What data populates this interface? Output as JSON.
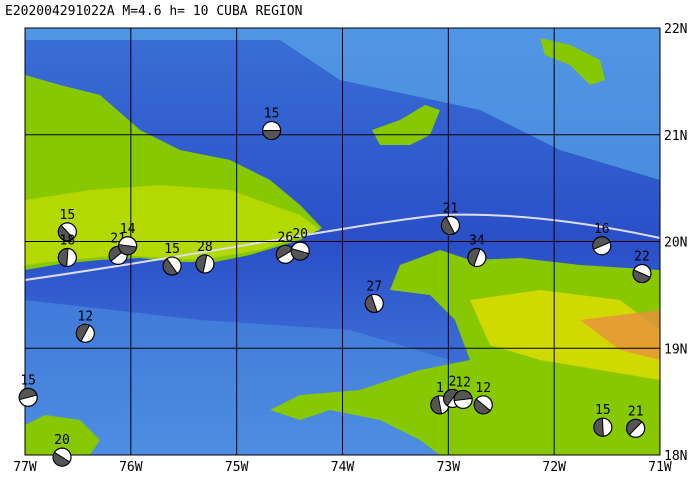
{
  "title": "E202004291022A  M=4.6  h= 10  CUBA REGION",
  "lonlim": [
    -77,
    -71
  ],
  "latlim": [
    18,
    22
  ],
  "lonticks": [
    {
      "value": -77,
      "label": "77W"
    },
    {
      "value": -76,
      "label": "76W"
    },
    {
      "value": -75,
      "label": "75W"
    },
    {
      "value": -74,
      "label": "74W"
    },
    {
      "value": -73,
      "label": "73W"
    },
    {
      "value": -72,
      "label": "72W"
    },
    {
      "value": -71,
      "label": "71W"
    }
  ],
  "latticks": [
    {
      "value": 22,
      "label": "22N"
    },
    {
      "value": 21,
      "label": "21N"
    },
    {
      "value": 20,
      "label": "20N"
    },
    {
      "value": 19,
      "label": "19N"
    },
    {
      "value": 18,
      "label": "18N"
    }
  ],
  "events": [
    {
      "lon": -74.67,
      "lat": 21.04,
      "depth": 15
    },
    {
      "lon": -76.6,
      "lat": 20.09,
      "depth": 15
    },
    {
      "lon": -76.6,
      "lat": 19.85,
      "depth": 18
    },
    {
      "lon": -76.12,
      "lat": 19.87,
      "depth": 21
    },
    {
      "lon": -76.03,
      "lat": 19.96,
      "depth": 14
    },
    {
      "lon": -75.61,
      "lat": 19.77,
      "depth": 15
    },
    {
      "lon": -75.3,
      "lat": 19.79,
      "depth": 28
    },
    {
      "lon": -74.54,
      "lat": 19.88,
      "depth": 26
    },
    {
      "lon": -74.4,
      "lat": 19.91,
      "depth": 20
    },
    {
      "lon": -72.98,
      "lat": 20.15,
      "depth": 21
    },
    {
      "lon": -72.73,
      "lat": 19.85,
      "depth": 34
    },
    {
      "lon": -71.55,
      "lat": 19.96,
      "depth": 16
    },
    {
      "lon": -71.17,
      "lat": 19.7,
      "depth": 22
    },
    {
      "lon": -73.7,
      "lat": 19.42,
      "depth": 27
    },
    {
      "lon": -76.43,
      "lat": 19.14,
      "depth": 12
    },
    {
      "lon": -76.97,
      "lat": 18.54,
      "depth": 15
    },
    {
      "lon": -76.65,
      "lat": 17.98,
      "depth": 20
    },
    {
      "lon": -73.08,
      "lat": 18.47,
      "depth": 1
    },
    {
      "lon": -72.96,
      "lat": 18.53,
      "depth": 2
    },
    {
      "lon": -72.86,
      "lat": 18.52,
      "depth": 12
    },
    {
      "lon": -72.67,
      "lat": 18.47,
      "depth": 12
    },
    {
      "lon": -71.54,
      "lat": 18.26,
      "depth": 15
    },
    {
      "lon": -71.23,
      "lat": 18.25,
      "depth": 21
    }
  ]
}
